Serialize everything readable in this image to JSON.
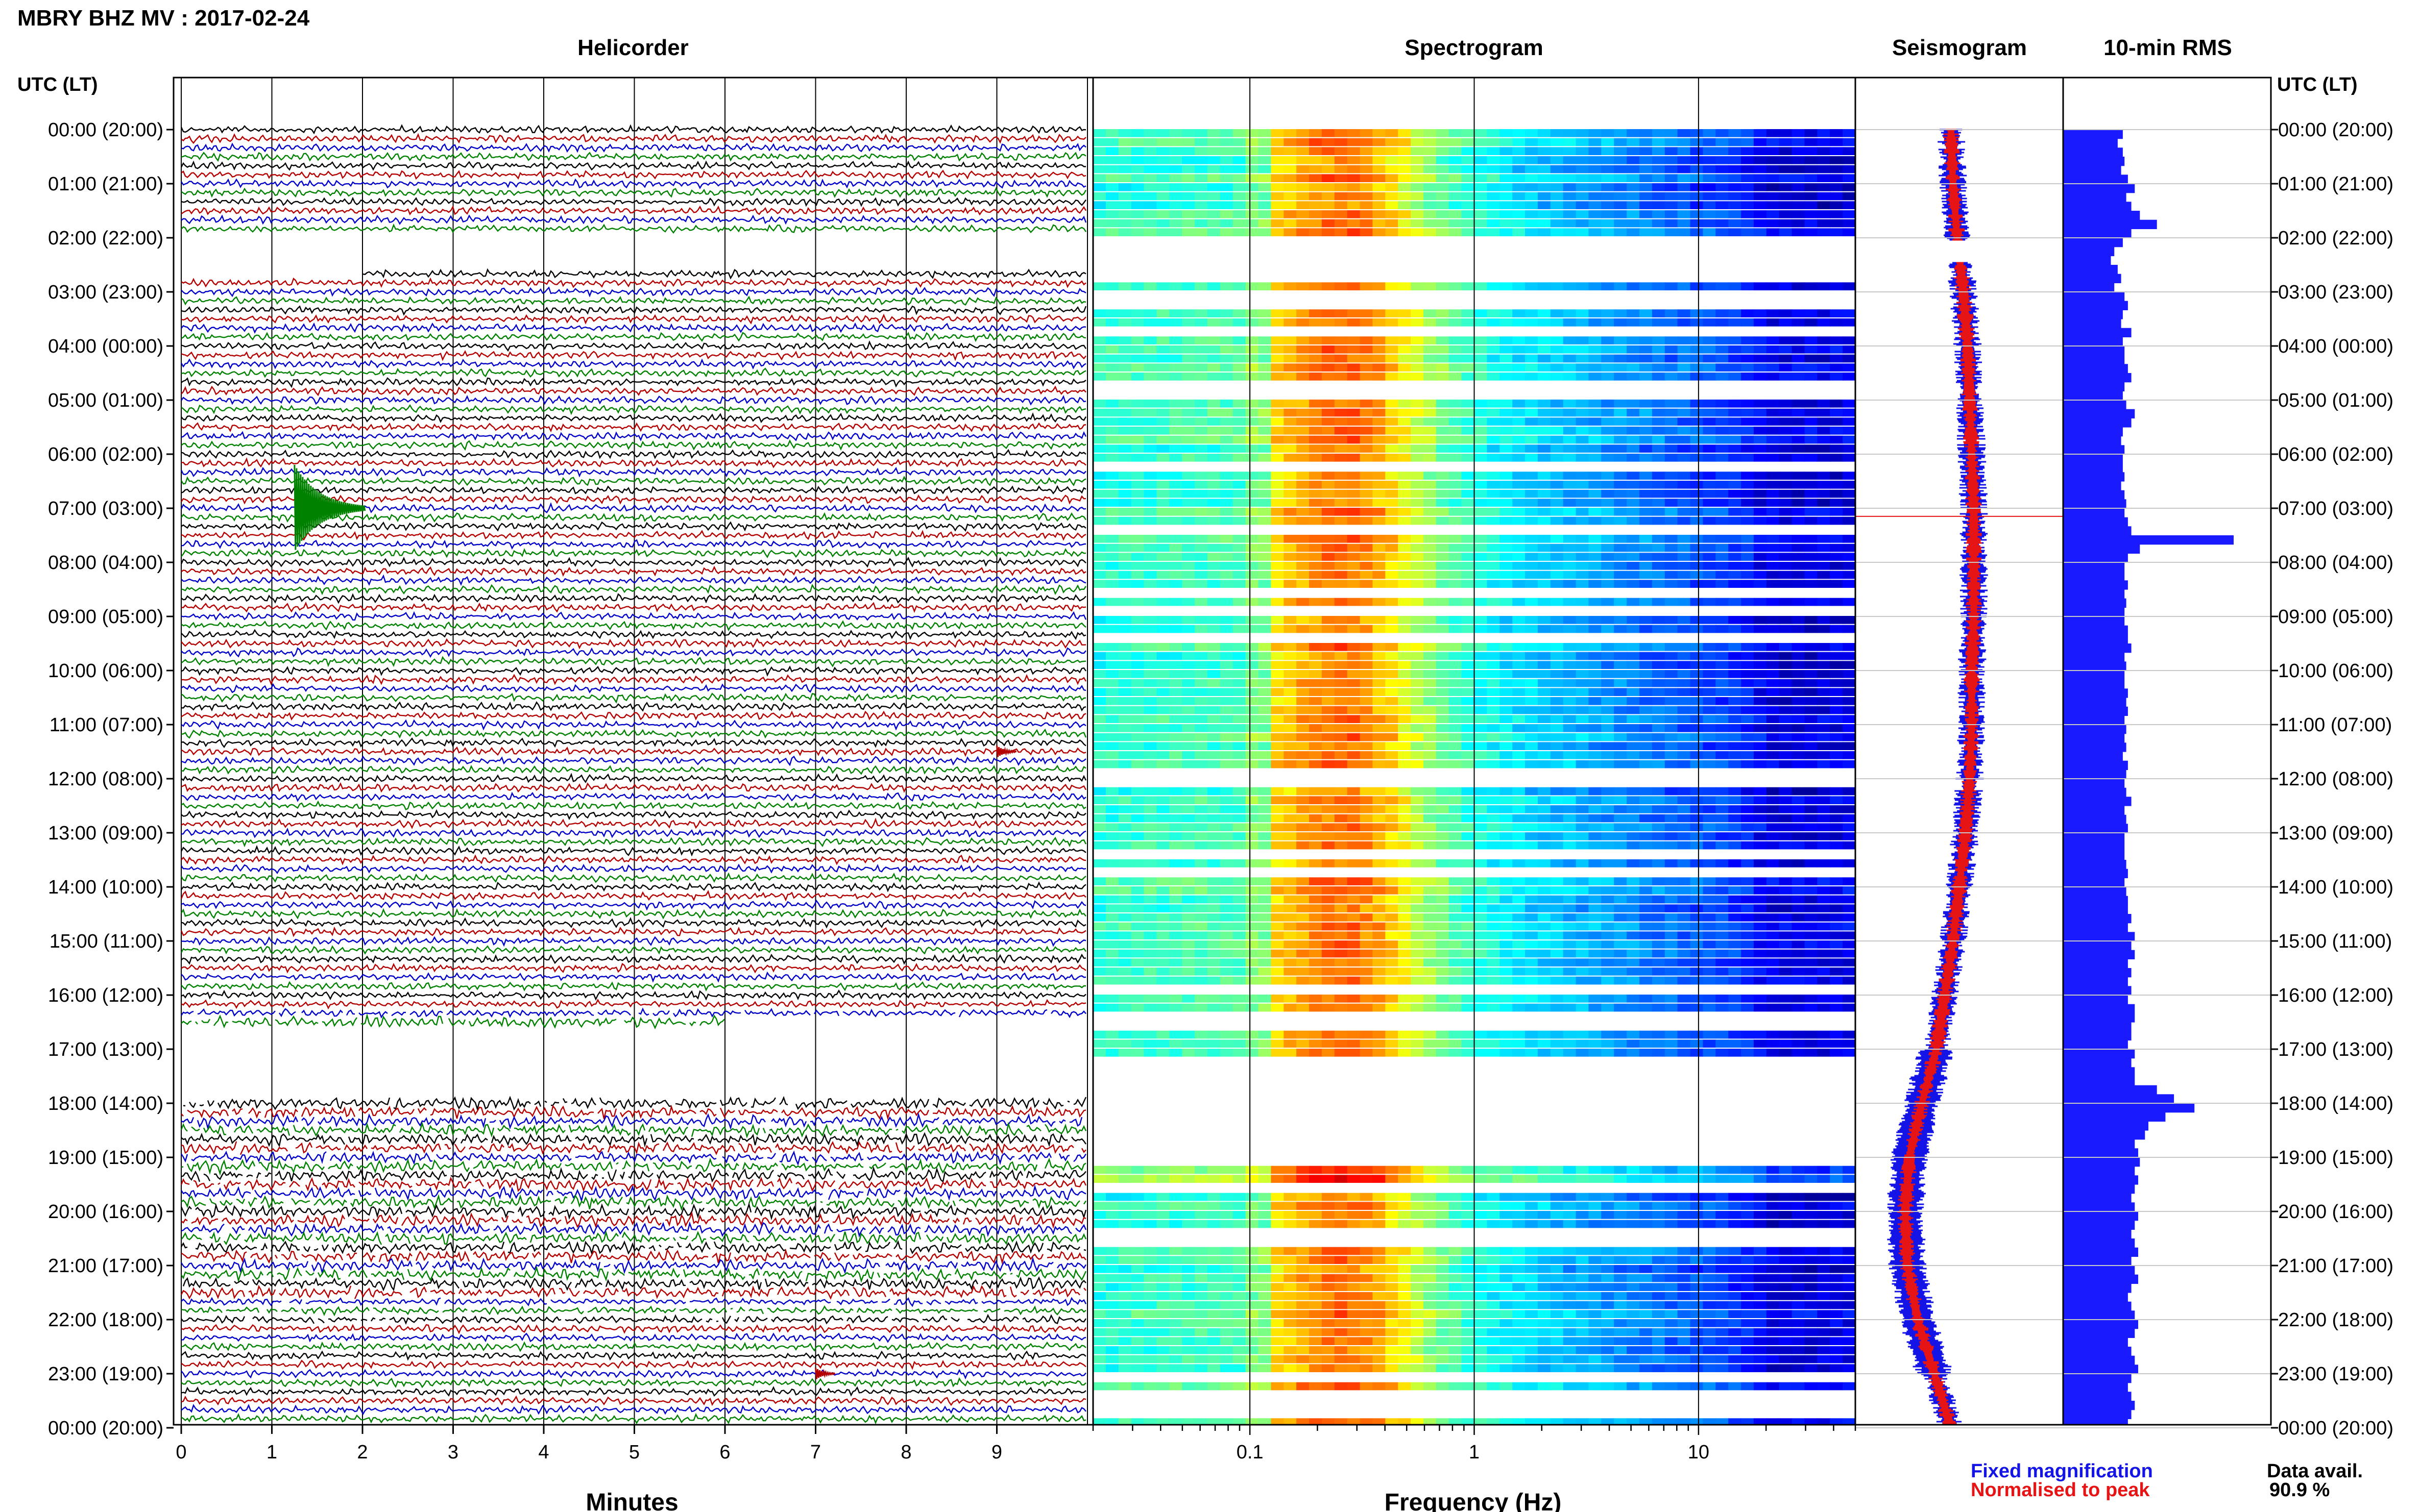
{
  "title": "MBRY BHZ MV : 2017-02-24",
  "panels": {
    "helicorder": "Helicorder",
    "spectrogram": "Spectrogram",
    "seismogram": "Seismogram",
    "rms": "10-min RMS"
  },
  "axis_header_left": "UTC (LT)",
  "axis_header_right": "UTC (LT)",
  "time_labels": [
    "00:00 (20:00)",
    "01:00 (21:00)",
    "02:00 (22:00)",
    "03:00 (23:00)",
    "04:00 (00:00)",
    "05:00 (01:00)",
    "06:00 (02:00)",
    "07:00 (03:00)",
    "08:00 (04:00)",
    "09:00 (05:00)",
    "10:00 (06:00)",
    "11:00 (07:00)",
    "12:00 (08:00)",
    "13:00 (09:00)",
    "14:00 (10:00)",
    "15:00 (11:00)",
    "16:00 (12:00)",
    "17:00 (13:00)",
    "18:00 (14:00)",
    "19:00 (15:00)",
    "20:00 (16:00)",
    "21:00 (17:00)",
    "22:00 (18:00)",
    "23:00 (19:00)",
    "00:00 (20:00)"
  ],
  "legend": {
    "fixed": "Fixed magnification",
    "normalised": "Normalised to peak",
    "fixed_color": "#1414e6",
    "normalised_color": "#e61414"
  },
  "data_avail": {
    "label": "Data avail.",
    "value": "90.9 %"
  },
  "chart_data": [
    {
      "type": "line",
      "name": "helicorder",
      "title": "Helicorder",
      "xlabel": "Minutes",
      "xticks": [
        "0",
        "1",
        "2",
        "3",
        "4",
        "5",
        "6",
        "7",
        "8",
        "9"
      ],
      "xlim": [
        0,
        10
      ],
      "rows": 144,
      "trace_colors": [
        "#000000",
        "#b40000",
        "#0000c8",
        "#008200"
      ],
      "gaps_hours": [
        [
          2.0,
          2.7
        ],
        [
          16.6,
          18.0
        ]
      ],
      "events": [
        {
          "hour": 7.0,
          "minute": 1.25,
          "amplitude": "large"
        },
        {
          "hour": 11.5,
          "minute": 9.0,
          "amplitude": "small"
        },
        {
          "hour": 23.0,
          "minute": 7.0,
          "amplitude": "small"
        }
      ]
    },
    {
      "type": "heatmap",
      "name": "spectrogram",
      "title": "Spectrogram",
      "xlabel": "Frequency (Hz)",
      "xscale": "log",
      "xticks": [
        "0.1",
        "1",
        "10"
      ],
      "xlim": [
        0.02,
        50
      ],
      "colormap": "jet",
      "gaps_hours": [
        [
          1.9,
          2.7
        ],
        [
          17.1,
          18.9
        ]
      ]
    },
    {
      "type": "line",
      "name": "seismogram",
      "title": "Seismogram",
      "series": [
        {
          "name": "Fixed magnification",
          "color": "#1414e6"
        },
        {
          "name": "Normalised to peak",
          "color": "#e61414"
        }
      ],
      "hours": [
        0,
        1,
        2,
        3,
        4,
        5,
        6,
        7,
        8,
        9,
        10,
        11,
        12,
        13,
        14,
        15,
        16,
        17,
        18,
        19,
        20,
        21,
        22,
        23,
        24
      ],
      "offset": [
        0.46,
        0.47,
        0.49,
        0.52,
        0.54,
        0.55,
        0.56,
        0.57,
        0.57,
        0.57,
        0.56,
        0.56,
        0.55,
        0.53,
        0.5,
        0.47,
        0.43,
        0.39,
        0.32,
        0.26,
        0.24,
        0.25,
        0.3,
        0.38,
        0.46
      ]
    },
    {
      "type": "bar",
      "name": "rms",
      "title": "10-min RMS",
      "orientation": "horizontal",
      "color": "#1a1aff",
      "values": [
        0.35,
        0.32,
        0.35,
        0.36,
        0.34,
        0.38,
        0.42,
        0.37,
        0.4,
        0.45,
        0.55,
        0.4,
        0.35,
        0.3,
        0.28,
        0.32,
        0.34,
        0.3,
        0.36,
        0.38,
        0.35,
        0.34,
        0.4,
        0.35,
        0.36,
        0.36,
        0.38,
        0.4,
        0.36,
        0.35,
        0.37,
        0.42,
        0.4,
        0.35,
        0.34,
        0.36,
        0.35,
        0.35,
        0.36,
        0.34,
        0.36,
        0.37,
        0.36,
        0.38,
        0.4,
        1.0,
        0.45,
        0.38,
        0.36,
        0.36,
        0.38,
        0.36,
        0.37,
        0.36,
        0.36,
        0.38,
        0.38,
        0.4,
        0.36,
        0.37,
        0.36,
        0.36,
        0.38,
        0.37,
        0.38,
        0.36,
        0.37,
        0.36,
        0.37,
        0.35,
        0.38,
        0.37,
        0.36,
        0.37,
        0.4,
        0.36,
        0.37,
        0.38,
        0.36,
        0.36,
        0.36,
        0.37,
        0.38,
        0.36,
        0.37,
        0.38,
        0.38,
        0.4,
        0.38,
        0.42,
        0.4,
        0.42,
        0.38,
        0.4,
        0.38,
        0.4,
        0.38,
        0.42,
        0.42,
        0.4,
        0.4,
        0.38,
        0.42,
        0.4,
        0.42,
        0.42,
        0.55,
        0.65,
        0.77,
        0.6,
        0.5,
        0.48,
        0.42,
        0.44,
        0.45,
        0.42,
        0.44,
        0.42,
        0.4,
        0.42,
        0.44,
        0.42,
        0.4,
        0.42,
        0.44,
        0.4,
        0.42,
        0.44,
        0.4,
        0.38,
        0.4,
        0.42,
        0.44,
        0.42,
        0.38,
        0.4,
        0.42,
        0.44,
        0.4,
        0.38,
        0.4,
        0.42,
        0.4,
        0.38
      ]
    }
  ]
}
